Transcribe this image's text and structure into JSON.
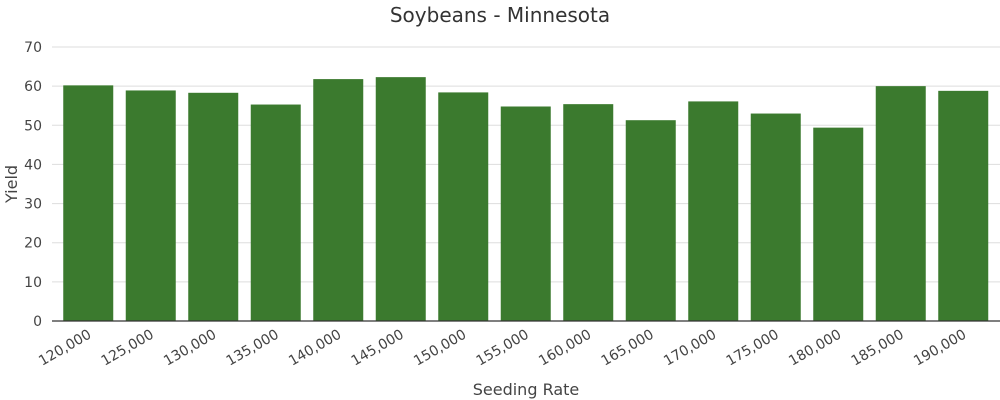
{
  "chart_data": {
    "type": "bar",
    "title": "Soybeans - Minnesota",
    "xlabel": "Seeding Rate",
    "ylabel": "Yield",
    "categories": [
      "120,000",
      "125,000",
      "130,000",
      "135,000",
      "140,000",
      "145,000",
      "150,000",
      "155,000",
      "160,000",
      "165,000",
      "170,000",
      "175,000",
      "180,000",
      "185,000",
      "190,000"
    ],
    "values": [
      60.2,
      58.9,
      58.3,
      55.3,
      61.8,
      62.3,
      58.4,
      54.8,
      55.4,
      51.3,
      56.1,
      53.0,
      49.4,
      60.0,
      58.8
    ],
    "ylim": [
      0,
      70
    ],
    "yticks": [
      "0",
      "10",
      "20",
      "30",
      "40",
      "50",
      "60",
      "70"
    ],
    "grid": true,
    "bar_color": "#3b7a2e"
  }
}
